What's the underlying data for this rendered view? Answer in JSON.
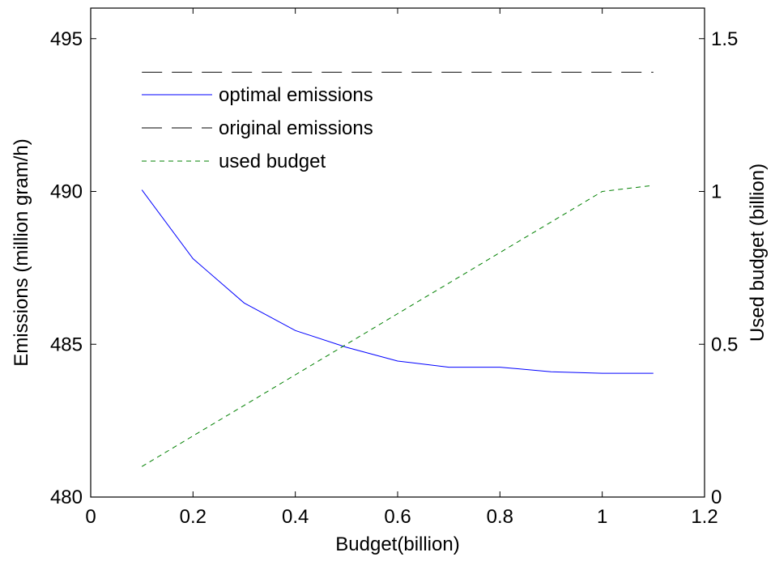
{
  "chart_data": {
    "type": "line",
    "xlabel": "Budget(billion)",
    "ylabel": "Emissions (million gram/h)",
    "y2label": "Used budget (billion)",
    "xlim": [
      0,
      1.2
    ],
    "ylim": [
      480,
      496
    ],
    "y2lim": [
      0,
      1.6
    ],
    "x_ticks": [
      "0",
      "0.2",
      "0.4",
      "0.6",
      "0.8",
      "1",
      "1.2"
    ],
    "y_ticks": [
      "480",
      "485",
      "490",
      "495"
    ],
    "y2_ticks": [
      "0",
      "0.5",
      "1",
      "1.5"
    ],
    "grid": false,
    "legend_position": "upper-left inside",
    "x": [
      0.1,
      0.2,
      0.3,
      0.4,
      0.5,
      0.6,
      0.7,
      0.8,
      0.9,
      1.0,
      1.1
    ],
    "series": [
      {
        "name": "optimal emissions",
        "axis": "left",
        "color": "#0000ff",
        "style": "solid",
        "values": [
          490.05,
          487.8,
          486.35,
          485.45,
          484.9,
          484.45,
          484.25,
          484.25,
          484.1,
          484.05,
          484.05
        ]
      },
      {
        "name": "original emissions",
        "axis": "left",
        "color": "#000000",
        "style": "dashed",
        "values": [
          493.9,
          493.9,
          493.9,
          493.9,
          493.9,
          493.9,
          493.9,
          493.9,
          493.9,
          493.9,
          493.9
        ]
      },
      {
        "name": "used budget",
        "axis": "right",
        "color": "#008000",
        "style": "dotted",
        "values": [
          0.1,
          0.2,
          0.3,
          0.4,
          0.5,
          0.6,
          0.7,
          0.8,
          0.9,
          1.0,
          1.02
        ]
      }
    ]
  }
}
